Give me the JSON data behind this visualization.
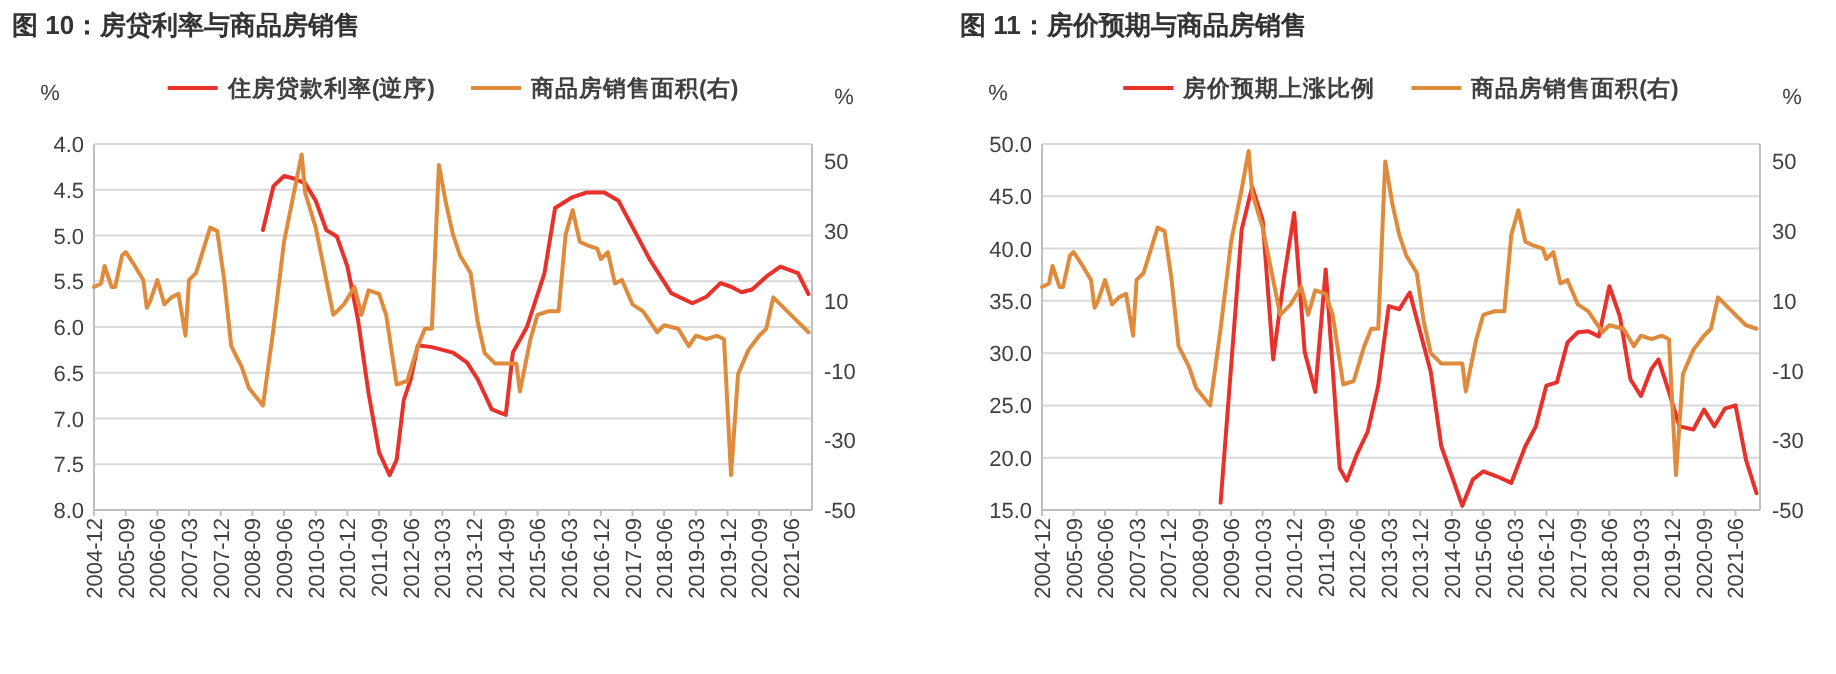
{
  "chart_data": [
    {
      "type": "line",
      "title": "图 10：房贷利率与商品房销售",
      "ylabel": "%",
      "y2label": "%",
      "grid": "y",
      "legend": "top",
      "xlim": [
        "2004-12",
        "2021-12"
      ],
      "xticks": [
        "2004-12",
        "2005-09",
        "2006-06",
        "2007-03",
        "2007-12",
        "2008-09",
        "2009-06",
        "2010-03",
        "2010-12",
        "2011-09",
        "2012-06",
        "2013-03",
        "2013-12",
        "2014-09",
        "2015-06",
        "2016-03",
        "2016-12",
        "2017-09",
        "2018-06",
        "2019-03",
        "2019-12",
        "2020-09",
        "2021-06"
      ],
      "ylim": [
        8.0,
        4.0
      ],
      "yticks": [
        {
          "value": 4,
          "label": "4.0"
        },
        {
          "value": 4.5,
          "label": "4.5"
        },
        {
          "value": 5,
          "label": "5.0"
        },
        {
          "value": 5.5,
          "label": "5.5"
        },
        {
          "value": 6,
          "label": "6.0"
        },
        {
          "value": 6.5,
          "label": "6.5"
        },
        {
          "value": 7,
          "label": "7.0"
        },
        {
          "value": 7.5,
          "label": "7.5"
        },
        {
          "value": 8,
          "label": "8.0"
        }
      ],
      "y2lim": [
        -50,
        55
      ],
      "y2ticks": [
        -50,
        -30,
        -10,
        10,
        30,
        50
      ],
      "series": [
        {
          "name": "住房贷款利率(逆序)",
          "color": "#e8312a",
          "x": [
            "2008-12",
            "2009-03",
            "2009-06",
            "2009-09",
            "2009-12",
            "2010-03",
            "2010-06",
            "2010-09",
            "2010-12",
            "2011-03",
            "2011-06",
            "2011-09",
            "2011-12",
            "2012-02",
            "2012-04",
            "2012-06",
            "2012-08",
            "2012-12",
            "2013-06",
            "2013-10",
            "2014-01",
            "2014-05",
            "2014-09",
            "2014-11",
            "2015-03",
            "2015-08",
            "2015-11",
            "2016-04",
            "2016-08",
            "2017-01",
            "2017-05",
            "2017-10",
            "2018-02",
            "2018-08",
            "2019-02",
            "2019-06",
            "2019-10",
            "2020-01",
            "2020-04",
            "2020-07",
            "2020-11",
            "2021-03",
            "2021-08",
            "2021-11"
          ],
          "values": [
            4.94,
            4.46,
            4.35,
            4.38,
            4.43,
            4.62,
            4.94,
            5.01,
            5.34,
            5.92,
            6.72,
            7.37,
            7.62,
            7.45,
            6.8,
            6.57,
            6.2,
            6.22,
            6.28,
            6.39,
            6.57,
            6.9,
            6.96,
            6.28,
            6.0,
            5.41,
            4.7,
            4.58,
            4.53,
            4.53,
            4.62,
            4.98,
            5.27,
            5.63,
            5.74,
            5.67,
            5.52,
            5.56,
            5.62,
            5.59,
            5.45,
            5.34,
            5.41,
            5.64
          ]
        },
        {
          "name": "商品房销售面积(右)",
          "color": "#e08a3c",
          "axis": "y2",
          "x": [
            "2004-12",
            "2005-02",
            "2005-03",
            "2005-05",
            "2005-06",
            "2005-08",
            "2005-09",
            "2005-11",
            "2006-02",
            "2006-03",
            "2006-04",
            "2006-06",
            "2006-08",
            "2006-10",
            "2006-12",
            "2007-02",
            "2007-03",
            "2007-05",
            "2007-09",
            "2007-11",
            "2008-01",
            "2008-03",
            "2008-06",
            "2008-08",
            "2008-12",
            "2009-03",
            "2009-06",
            "2009-09",
            "2009-11",
            "2009-12",
            "2010-03",
            "2010-06",
            "2010-08",
            "2010-11",
            "2011-02",
            "2011-04",
            "2011-06",
            "2011-09",
            "2011-11",
            "2012-02",
            "2012-05",
            "2012-08",
            "2012-10",
            "2012-12",
            "2013-02",
            "2013-04",
            "2013-06",
            "2013-08",
            "2013-11",
            "2014-01",
            "2014-03",
            "2014-06",
            "2014-09",
            "2014-12",
            "2015-01",
            "2015-04",
            "2015-06",
            "2015-09",
            "2015-12",
            "2016-02",
            "2016-04",
            "2016-06",
            "2016-08",
            "2016-11",
            "2016-12",
            "2017-02",
            "2017-04",
            "2017-06",
            "2017-09",
            "2017-12",
            "2018-04",
            "2018-06",
            "2018-10",
            "2019-01",
            "2019-03",
            "2019-06",
            "2019-09",
            "2019-11",
            "2020-01",
            "2020-03",
            "2020-06",
            "2020-09",
            "2020-11",
            "2021-01",
            "2021-03",
            "2021-06",
            "2021-09",
            "2021-11"
          ],
          "values": [
            14,
            15,
            20,
            14,
            14,
            23,
            24,
            21,
            16,
            8,
            10,
            16,
            9,
            11,
            12,
            0,
            16,
            18,
            31,
            30,
            16,
            -3,
            -9,
            -15,
            -20,
            2,
            27,
            42,
            52,
            41,
            31,
            16,
            6,
            9,
            14,
            6,
            13,
            12,
            6,
            -14,
            -13,
            -3,
            2,
            2,
            49,
            38,
            29,
            23,
            18,
            4,
            -5,
            -8,
            -8,
            -8,
            -16,
            -1,
            6,
            7,
            7,
            29,
            36,
            27,
            26,
            25,
            22,
            24,
            15,
            16,
            9,
            7,
            1,
            3,
            2,
            -3,
            0,
            -1,
            0,
            -1,
            -40,
            -11,
            -4,
            0,
            2,
            11,
            9,
            6,
            3,
            1
          ]
        }
      ]
    },
    {
      "type": "line",
      "title": "图 11：房价预期与商品房销售",
      "ylabel": "%",
      "y2label": "%",
      "grid": "y",
      "legend": "top",
      "xlim": [
        "2004-12",
        "2022-01"
      ],
      "xticks": [
        "2004-12",
        "2005-09",
        "2006-06",
        "2007-03",
        "2007-12",
        "2008-09",
        "2009-06",
        "2010-03",
        "2010-12",
        "2011-09",
        "2012-06",
        "2013-03",
        "2013-12",
        "2014-09",
        "2015-06",
        "2016-03",
        "2016-12",
        "2017-09",
        "2018-06",
        "2019-03",
        "2019-12",
        "2020-09",
        "2021-06"
      ],
      "ylim": [
        15.0,
        50.0
      ],
      "yticks": [
        {
          "value": 15,
          "label": "15.0"
        },
        {
          "value": 20,
          "label": "20.0"
        },
        {
          "value": 25,
          "label": "25.0"
        },
        {
          "value": 30,
          "label": "30.0"
        },
        {
          "value": 35,
          "label": "35.0"
        },
        {
          "value": 40,
          "label": "40.0"
        },
        {
          "value": 45,
          "label": "45.0"
        },
        {
          "value": 50,
          "label": "50.0"
        }
      ],
      "y2lim": [
        -50,
        55
      ],
      "y2ticks": [
        -50,
        -30,
        -10,
        10,
        30,
        50
      ],
      "series": [
        {
          "name": "房价预期上涨比例",
          "color": "#e8312a",
          "x": [
            "2009-03",
            "2009-09",
            "2009-12",
            "2010-03",
            "2010-06",
            "2010-09",
            "2010-12",
            "2011-03",
            "2011-06",
            "2011-09",
            "2012-01",
            "2012-03",
            "2012-06",
            "2012-09",
            "2012-12",
            "2013-03",
            "2013-06",
            "2013-09",
            "2013-12",
            "2014-03",
            "2014-06",
            "2014-10",
            "2014-12",
            "2015-03",
            "2015-06",
            "2015-10",
            "2016-02",
            "2016-06",
            "2016-09",
            "2016-12",
            "2017-03",
            "2017-06",
            "2017-09",
            "2017-12",
            "2018-03",
            "2018-06",
            "2018-09",
            "2018-12",
            "2019-03",
            "2019-06",
            "2019-08",
            "2019-11",
            "2020-02",
            "2020-06",
            "2020-09",
            "2020-12",
            "2021-03",
            "2021-06",
            "2021-09",
            "2021-12"
          ],
          "values": [
            15.7,
            41.8,
            45.9,
            42.7,
            29.4,
            37.0,
            43.4,
            30.1,
            26.3,
            38.0,
            19.0,
            17.8,
            20.4,
            22.5,
            26.9,
            34.5,
            34.2,
            35.8,
            32.0,
            28.2,
            21.1,
            17.3,
            15.4,
            17.9,
            18.7,
            18.2,
            17.6,
            21.1,
            23.0,
            26.9,
            27.2,
            31.0,
            32.0,
            32.1,
            31.6,
            36.4,
            33.5,
            27.5,
            25.9,
            28.5,
            29.4,
            26.3,
            23.0,
            22.7,
            24.6,
            23.0,
            24.7,
            25.0,
            19.8,
            16.6
          ]
        },
        {
          "name": "商品房销售面积(右)",
          "color": "#e08a3c",
          "axis": "y2",
          "x": [
            "2004-12",
            "2005-02",
            "2005-03",
            "2005-05",
            "2005-06",
            "2005-08",
            "2005-09",
            "2005-11",
            "2006-02",
            "2006-03",
            "2006-04",
            "2006-06",
            "2006-08",
            "2006-10",
            "2006-12",
            "2007-02",
            "2007-03",
            "2007-05",
            "2007-09",
            "2007-11",
            "2008-01",
            "2008-03",
            "2008-06",
            "2008-08",
            "2008-12",
            "2009-03",
            "2009-06",
            "2009-09",
            "2009-11",
            "2009-12",
            "2010-03",
            "2010-06",
            "2010-08",
            "2010-11",
            "2011-02",
            "2011-04",
            "2011-06",
            "2011-09",
            "2011-11",
            "2012-02",
            "2012-05",
            "2012-08",
            "2012-10",
            "2012-12",
            "2013-02",
            "2013-04",
            "2013-06",
            "2013-08",
            "2013-11",
            "2014-01",
            "2014-03",
            "2014-06",
            "2014-09",
            "2014-12",
            "2015-01",
            "2015-04",
            "2015-06",
            "2015-09",
            "2015-12",
            "2016-02",
            "2016-04",
            "2016-06",
            "2016-08",
            "2016-11",
            "2016-12",
            "2017-02",
            "2017-04",
            "2017-06",
            "2017-09",
            "2017-12",
            "2018-04",
            "2018-06",
            "2018-10",
            "2019-01",
            "2019-03",
            "2019-06",
            "2019-09",
            "2019-11",
            "2020-01",
            "2020-03",
            "2020-06",
            "2020-09",
            "2020-11",
            "2021-01",
            "2021-03",
            "2021-06",
            "2021-09",
            "2021-12"
          ],
          "values": [
            14,
            15,
            20,
            14,
            14,
            23,
            24,
            21,
            16,
            8,
            10,
            16,
            9,
            11,
            12,
            0,
            16,
            18,
            31,
            30,
            16,
            -3,
            -9,
            -15,
            -20,
            2,
            27,
            42,
            53,
            41,
            31,
            16,
            6,
            9,
            14,
            6,
            13,
            12,
            6,
            -14,
            -13,
            -3,
            2,
            2,
            50,
            38,
            29,
            23,
            18,
            4,
            -5,
            -8,
            -8,
            -8,
            -16,
            -1,
            6,
            7,
            7,
            29,
            36,
            27,
            26,
            25,
            22,
            24,
            15,
            16,
            9,
            7,
            1,
            3,
            2,
            -3,
            0,
            -1,
            0,
            -1,
            -40,
            -11,
            -4,
            0,
            2,
            11,
            9,
            6,
            3,
            2
          ]
        }
      ]
    }
  ]
}
